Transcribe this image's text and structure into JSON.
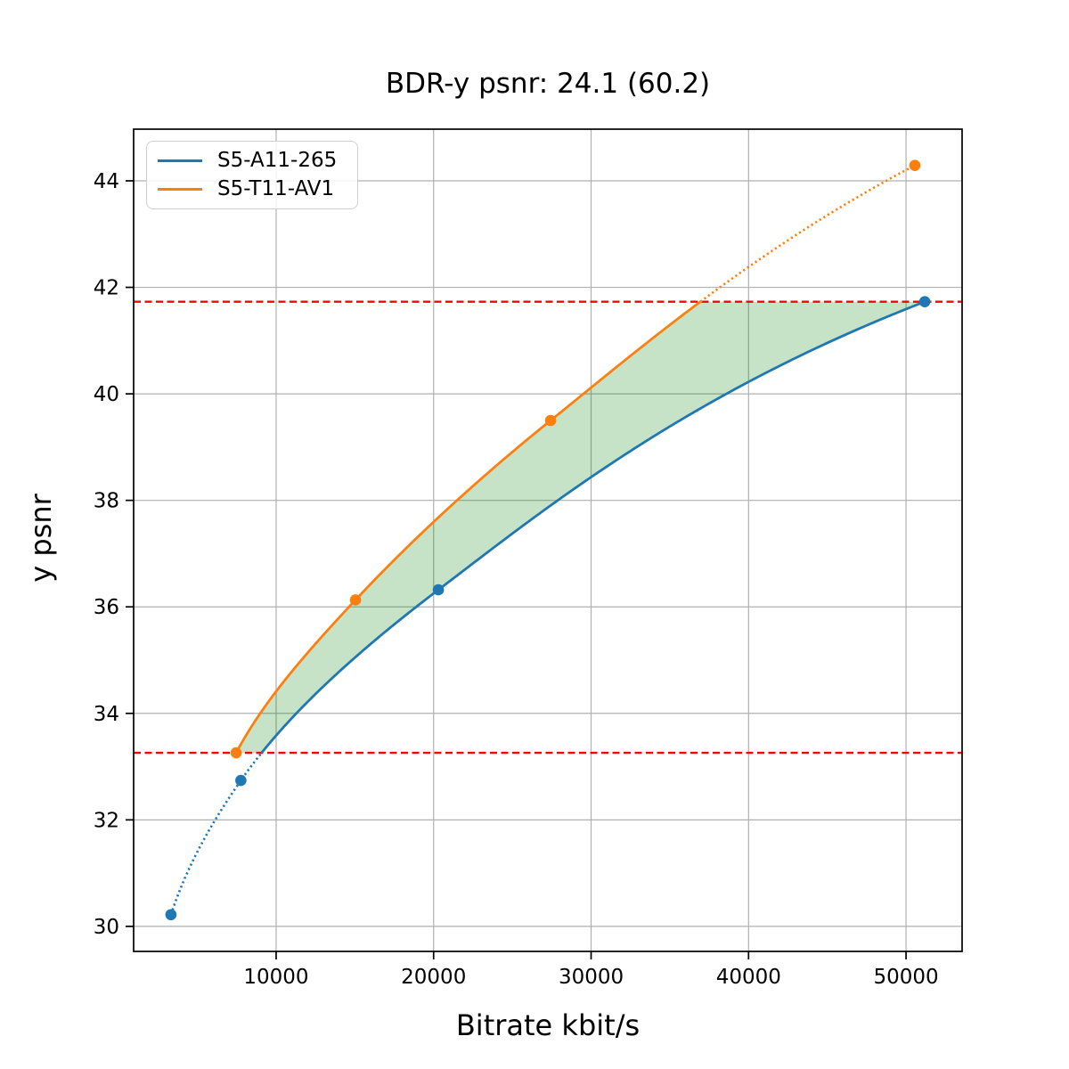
{
  "chart_data": {
    "type": "line",
    "title": "BDR-y psnr: 24.1 (60.2)",
    "xlabel": "Bitrate kbit/s",
    "ylabel": "y psnr",
    "xlim": [
      950,
      53560
    ],
    "ylim": [
      29.53,
      44.97
    ],
    "xticks": [
      10000,
      20000,
      30000,
      40000,
      50000
    ],
    "yticks": [
      30,
      32,
      34,
      36,
      38,
      40,
      42,
      44
    ],
    "grid": true,
    "grid_color": "#b0b0b0",
    "legend_position": "upper-left",
    "series": [
      {
        "name": "S5-A11-265",
        "color": "#1f77b4",
        "x": [
          3320,
          7760,
          20300,
          51190
        ],
        "y": [
          30.22,
          32.74,
          36.32,
          41.73
        ]
      },
      {
        "name": "S5-T11-AV1",
        "color": "#ff7f0e",
        "x": [
          7460,
          15040,
          27430,
          50560
        ],
        "y": [
          33.26,
          36.13,
          39.5,
          44.29
        ]
      }
    ],
    "overlap_band": {
      "lower": 33.26,
      "upper": 41.73,
      "line_color": "#ff0000",
      "line_style": "dashed",
      "fill_color": "#008000",
      "fill_opacity": 0.22
    }
  }
}
